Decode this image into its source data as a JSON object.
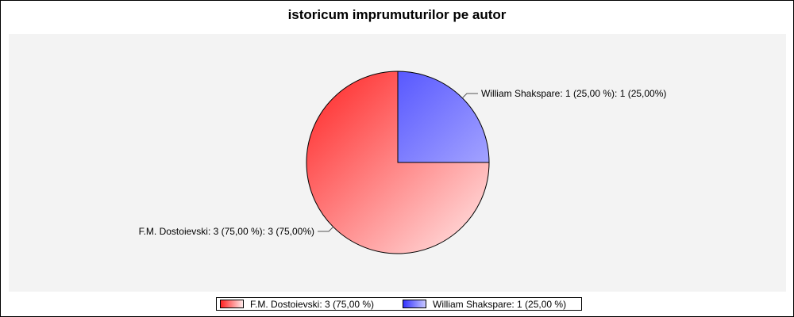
{
  "chart_data": {
    "type": "pie",
    "title": "istoricum imprumuturilor pe autor",
    "slices": [
      {
        "name": "William Shakspare",
        "value": 1,
        "legend_label": "William Shakspare: 1 (25,00 %)",
        "data_label": "William Shakspare: 1 (25,00 %): 1 (25,00%)",
        "color_dark": "#3333ff",
        "color_light": "#c8c8ff"
      },
      {
        "name": "F.M. Dostoievski",
        "value": 3,
        "legend_label": "F.M. Dostoievski: 3 (75,00 %)",
        "data_label": "F.M. Dostoievski: 3 (75,00 %): 3 (75,00%)",
        "color_dark": "#ff2222",
        "color_light": "#ffeaea"
      }
    ],
    "start_angle": "12 o'clock",
    "direction": "clockwise",
    "legend_position": "bottom"
  },
  "colors": {
    "plot_background": "#f3f3f3",
    "outline": "#000000",
    "leader_line": "#555555"
  }
}
